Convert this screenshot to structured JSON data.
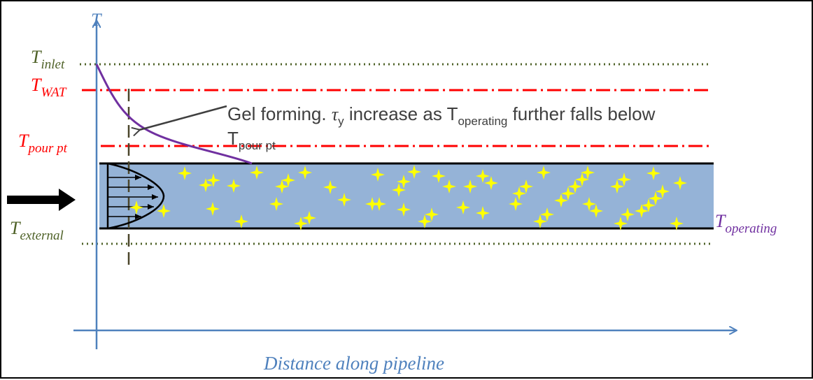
{
  "diagram": {
    "axis": {
      "y_label": "T",
      "x_label": "Distance along pipeline"
    },
    "levels": {
      "inlet": {
        "main": "T",
        "sub": "inlet"
      },
      "wat": {
        "main": "T",
        "sub": "WAT"
      },
      "pour": {
        "main": "T",
        "sub": "pour pt"
      },
      "external": {
        "main": "T",
        "sub": "external"
      },
      "operating": {
        "main": "T",
        "sub": "operating"
      }
    },
    "annotation": {
      "line1_a": "Gel forming. ",
      "tau": "τ",
      "tau_sub": "y",
      "line1_b": " increase as T",
      "line1_sub": "operating",
      "line1_c": " further falls below",
      "line2_main": "T",
      "line2_sub": "pour pt"
    },
    "colors": {
      "axis": "#4f81bd",
      "olive": "#4f6228",
      "red": "#ff0000",
      "purple": "#7030a0",
      "pipe": "#95b3d7",
      "crystal": "#ffff00",
      "annotation": "#3f3f3f"
    },
    "icons": [
      "flow-arrow-icon",
      "crystal-icon"
    ]
  }
}
